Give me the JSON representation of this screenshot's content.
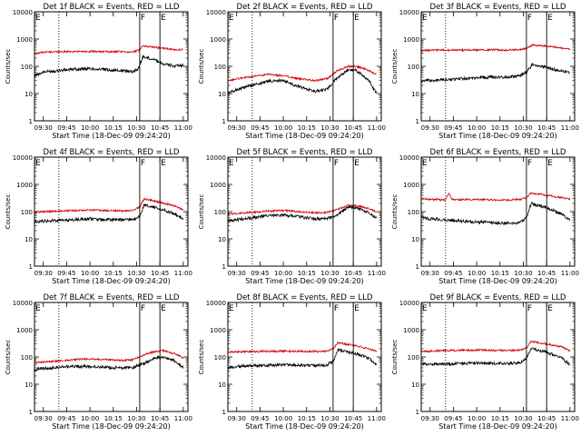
{
  "chart_data": [
    {
      "type": "line",
      "title": "Det 1f BLACK = Events, RED = LLD",
      "xlabel": "Start Time (18-Dec-09 09:24:20)",
      "ylabel": "Counts/sec",
      "xticks": [
        "09:30",
        "09:45",
        "10:00",
        "10:15",
        "10:30",
        "10:45",
        "11:00"
      ],
      "yticks": [
        "1",
        "10",
        "100",
        "1000",
        "10000"
      ],
      "ylim": [
        1,
        10000
      ],
      "yscale": "log",
      "vlines_dotted": [
        "09:40"
      ],
      "vlines_solid": [
        "10:32",
        "10:45"
      ],
      "annotations": [
        "E",
        "F",
        "E"
      ],
      "series": [
        {
          "color": "#000000",
          "x": [
            "09:24",
            "09:30",
            "09:40",
            "09:50",
            "10:00",
            "10:10",
            "10:20",
            "10:28",
            "10:31",
            "10:34",
            "10:40",
            "10:48",
            "10:55",
            "11:00"
          ],
          "values": [
            45,
            62,
            70,
            78,
            82,
            76,
            68,
            65,
            80,
            220,
            190,
            120,
            100,
            110
          ]
        },
        {
          "color": "#d40000",
          "x": [
            "09:24",
            "09:30",
            "09:40",
            "09:50",
            "10:00",
            "10:10",
            "10:20",
            "10:28",
            "10:31",
            "10:34",
            "10:40",
            "10:48",
            "10:55",
            "11:00"
          ],
          "values": [
            290,
            330,
            345,
            350,
            350,
            345,
            340,
            340,
            380,
            560,
            520,
            450,
            400,
            410
          ]
        }
      ]
    },
    {
      "type": "line",
      "title": "Det 2f BLACK = Events, RED = LLD",
      "xlabel": "Start Time (18-Dec-09 09:24:20)",
      "ylabel": "Counts/sec",
      "xticks": [
        "09:30",
        "09:45",
        "10:00",
        "10:15",
        "10:30",
        "10:45",
        "11:00"
      ],
      "yticks": [
        "1",
        "10",
        "100",
        "1000",
        "10000"
      ],
      "ylim": [
        1,
        10000
      ],
      "yscale": "log",
      "vlines_dotted": [
        "09:40"
      ],
      "vlines_solid": [
        "10:32",
        "10:45"
      ],
      "annotations": [
        "E",
        "F",
        "E"
      ],
      "series": [
        {
          "color": "#000000",
          "x": [
            "09:24",
            "09:30",
            "09:40",
            "09:50",
            "10:00",
            "10:10",
            "10:20",
            "10:28",
            "10:35",
            "10:42",
            "10:47",
            "10:55",
            "11:00"
          ],
          "values": [
            10,
            14,
            20,
            28,
            30,
            18,
            12,
            14,
            40,
            75,
            70,
            30,
            10
          ]
        },
        {
          "color": "#d40000",
          "x": [
            "09:24",
            "09:30",
            "09:40",
            "09:50",
            "10:00",
            "10:10",
            "10:20",
            "10:28",
            "10:35",
            "10:42",
            "10:47",
            "10:55",
            "11:00"
          ],
          "values": [
            28,
            35,
            42,
            50,
            45,
            35,
            30,
            35,
            70,
            100,
            100,
            70,
            50
          ]
        }
      ]
    },
    {
      "type": "line",
      "title": "Det 3f BLACK = Events, RED = LLD",
      "xlabel": "Start Time (18-Dec-09 09:24:20)",
      "ylabel": "Counts/sec",
      "xticks": [
        "09:30",
        "09:45",
        "10:00",
        "10:15",
        "10:30",
        "10:45",
        "11:00"
      ],
      "yticks": [
        "1",
        "10",
        "100",
        "1000",
        "10000"
      ],
      "ylim": [
        1,
        10000
      ],
      "yscale": "log",
      "vlines_dotted": [
        "09:40"
      ],
      "vlines_solid": [
        "10:32",
        "10:45"
      ],
      "annotations": [
        "E",
        "F",
        "E"
      ],
      "series": [
        {
          "color": "#000000",
          "x": [
            "09:24",
            "09:30",
            "09:40",
            "09:50",
            "10:00",
            "10:10",
            "10:20",
            "10:28",
            "10:32",
            "10:36",
            "10:45",
            "10:55",
            "11:00"
          ],
          "values": [
            28,
            30,
            32,
            35,
            38,
            40,
            40,
            45,
            60,
            120,
            90,
            65,
            60
          ]
        },
        {
          "color": "#d40000",
          "x": [
            "09:24",
            "09:30",
            "09:40",
            "09:50",
            "10:00",
            "10:10",
            "10:20",
            "10:28",
            "10:32",
            "10:36",
            "10:45",
            "10:55",
            "11:00"
          ],
          "values": [
            380,
            390,
            390,
            395,
            400,
            400,
            400,
            410,
            450,
            600,
            560,
            460,
            430
          ]
        }
      ]
    },
    {
      "type": "line",
      "title": "Det 4f BLACK = Events, RED = LLD",
      "xlabel": "Start Time (18-Dec-09 09:24:20)",
      "ylabel": "Counts/sec",
      "xticks": [
        "09:30",
        "09:45",
        "10:00",
        "10:15",
        "10:30",
        "10:45",
        "11:00"
      ],
      "yticks": [
        "1",
        "10",
        "100",
        "1000",
        "10000"
      ],
      "ylim": [
        1,
        10000
      ],
      "yscale": "log",
      "vlines_dotted": [
        "09:40"
      ],
      "vlines_solid": [
        "10:32",
        "10:45"
      ],
      "annotations": [
        "E",
        "F",
        "E"
      ],
      "series": [
        {
          "color": "#000000",
          "x": [
            "09:24",
            "09:30",
            "09:40",
            "09:50",
            "10:00",
            "10:10",
            "10:20",
            "10:28",
            "10:32",
            "10:35",
            "10:45",
            "10:55",
            "11:00"
          ],
          "values": [
            42,
            45,
            48,
            50,
            55,
            50,
            50,
            52,
            70,
            180,
            130,
            80,
            55
          ]
        },
        {
          "color": "#d40000",
          "x": [
            "09:24",
            "09:30",
            "09:40",
            "09:50",
            "10:00",
            "10:10",
            "10:20",
            "10:28",
            "10:32",
            "10:35",
            "10:45",
            "10:55",
            "11:00"
          ],
          "values": [
            95,
            100,
            105,
            110,
            115,
            110,
            105,
            110,
            150,
            300,
            220,
            160,
            120
          ]
        }
      ]
    },
    {
      "type": "line",
      "title": "Det 5f BLACK = Events, RED = LLD",
      "xlabel": "Start Time (18-Dec-09 09:24:20)",
      "ylabel": "Counts/sec",
      "xticks": [
        "09:30",
        "09:45",
        "10:00",
        "10:15",
        "10:30",
        "10:45",
        "11:00"
      ],
      "yticks": [
        "1",
        "10",
        "100",
        "1000",
        "10000"
      ],
      "ylim": [
        1,
        10000
      ],
      "yscale": "log",
      "vlines_dotted": [
        "09:40"
      ],
      "vlines_solid": [
        "10:32",
        "10:45"
      ],
      "annotations": [
        "E",
        "F",
        "E"
      ],
      "series": [
        {
          "color": "#000000",
          "x": [
            "09:24",
            "09:30",
            "09:40",
            "09:50",
            "10:00",
            "10:10",
            "10:20",
            "10:28",
            "10:35",
            "10:42",
            "10:47",
            "10:55",
            "11:00"
          ],
          "values": [
            45,
            50,
            60,
            70,
            75,
            65,
            55,
            55,
            80,
            150,
            140,
            90,
            60
          ]
        },
        {
          "color": "#d40000",
          "x": [
            "09:24",
            "09:30",
            "09:40",
            "09:50",
            "10:00",
            "10:10",
            "10:20",
            "10:28",
            "10:35",
            "10:42",
            "10:47",
            "10:55",
            "11:00"
          ],
          "values": [
            80,
            85,
            95,
            105,
            110,
            100,
            90,
            95,
            120,
            170,
            170,
            130,
            100
          ]
        }
      ]
    },
    {
      "type": "line",
      "title": "Det 6f BLACK = Events, RED = LLD",
      "xlabel": "Start Time (18-Dec-09 09:24:20)",
      "ylabel": "Counts/sec",
      "xticks": [
        "09:30",
        "09:45",
        "10:00",
        "10:15",
        "10:30",
        "10:45",
        "11:00"
      ],
      "yticks": [
        "1",
        "10",
        "100",
        "1000",
        "10000"
      ],
      "ylim": [
        1,
        10000
      ],
      "yscale": "log",
      "vlines_dotted": [
        "09:40"
      ],
      "vlines_solid": [
        "10:32",
        "10:45"
      ],
      "annotations": [
        "E",
        "F",
        "E"
      ],
      "series": [
        {
          "color": "#000000",
          "x": [
            "09:24",
            "09:30",
            "09:40",
            "09:50",
            "10:00",
            "10:10",
            "10:20",
            "10:28",
            "10:32",
            "10:35",
            "10:45",
            "10:55",
            "11:00"
          ],
          "values": [
            60,
            55,
            50,
            45,
            42,
            40,
            38,
            40,
            60,
            200,
            140,
            80,
            50
          ]
        },
        {
          "color": "#d40000",
          "x": [
            "09:24",
            "09:30",
            "09:40",
            "09:42",
            "09:44",
            "09:50",
            "10:00",
            "10:10",
            "10:20",
            "10:28",
            "10:32",
            "10:35",
            "10:45",
            "10:55",
            "11:00"
          ],
          "values": [
            300,
            280,
            270,
            480,
            280,
            280,
            280,
            270,
            270,
            280,
            330,
            480,
            400,
            320,
            280
          ]
        }
      ]
    },
    {
      "type": "line",
      "title": "Det 7f BLACK = Events, RED = LLD",
      "xlabel": "Start Time (18-Dec-09 09:24:20)",
      "ylabel": "Counts/sec",
      "xticks": [
        "09:30",
        "09:45",
        "10:00",
        "10:15",
        "10:30",
        "10:45",
        "11:00"
      ],
      "yticks": [
        "1",
        "10",
        "100",
        "1000",
        "10000"
      ],
      "ylim": [
        1,
        10000
      ],
      "yscale": "log",
      "vlines_dotted": [
        "09:40"
      ],
      "vlines_solid": [
        "10:32",
        "10:45"
      ],
      "annotations": [
        "E",
        "F",
        "E"
      ],
      "series": [
        {
          "color": "#000000",
          "x": [
            "09:24",
            "09:30",
            "09:40",
            "09:50",
            "10:00",
            "10:10",
            "10:20",
            "10:28",
            "10:35",
            "10:42",
            "10:47",
            "10:55",
            "11:00"
          ],
          "values": [
            35,
            38,
            42,
            45,
            45,
            42,
            40,
            42,
            60,
            90,
            100,
            70,
            40
          ]
        },
        {
          "color": "#d40000",
          "x": [
            "09:24",
            "09:30",
            "09:40",
            "09:50",
            "10:00",
            "10:10",
            "10:20",
            "10:28",
            "10:35",
            "10:42",
            "10:47",
            "10:55",
            "11:00"
          ],
          "values": [
            60,
            65,
            72,
            80,
            85,
            80,
            75,
            80,
            120,
            160,
            170,
            130,
            90
          ]
        }
      ]
    },
    {
      "type": "line",
      "title": "Det 8f BLACK = Events, RED = LLD",
      "xlabel": "Start Time (18-Dec-09 09:24:20)",
      "ylabel": "Counts/sec",
      "xticks": [
        "09:30",
        "09:45",
        "10:00",
        "10:15",
        "10:30",
        "10:45",
        "11:00"
      ],
      "yticks": [
        "1",
        "10",
        "100",
        "1000",
        "10000"
      ],
      "ylim": [
        1,
        10000
      ],
      "yscale": "log",
      "vlines_dotted": [
        "09:40"
      ],
      "vlines_solid": [
        "10:32",
        "10:45"
      ],
      "annotations": [
        "E",
        "F",
        "E"
      ],
      "series": [
        {
          "color": "#000000",
          "x": [
            "09:24",
            "09:30",
            "09:40",
            "09:50",
            "10:00",
            "10:10",
            "10:20",
            "10:28",
            "10:32",
            "10:35",
            "10:45",
            "10:55",
            "11:00"
          ],
          "values": [
            40,
            45,
            48,
            50,
            52,
            50,
            48,
            50,
            70,
            180,
            140,
            90,
            50
          ]
        },
        {
          "color": "#d40000",
          "x": [
            "09:24",
            "09:30",
            "09:40",
            "09:50",
            "10:00",
            "10:10",
            "10:20",
            "10:28",
            "10:32",
            "10:35",
            "10:45",
            "10:55",
            "11:00"
          ],
          "values": [
            150,
            155,
            160,
            160,
            165,
            160,
            160,
            160,
            200,
            330,
            270,
            200,
            160
          ]
        }
      ]
    },
    {
      "type": "line",
      "title": "Det 9f BLACK = Events, RED = LLD",
      "xlabel": "Start Time (18-Dec-09 09:24:20)",
      "ylabel": "Counts/sec",
      "xticks": [
        "09:30",
        "09:45",
        "10:00",
        "10:15",
        "10:30",
        "10:45",
        "11:00"
      ],
      "yticks": [
        "1",
        "10",
        "100",
        "1000",
        "10000"
      ],
      "ylim": [
        1,
        10000
      ],
      "yscale": "log",
      "vlines_dotted": [
        "09:40"
      ],
      "vlines_solid": [
        "10:32",
        "10:45"
      ],
      "annotations": [
        "E",
        "F",
        "E"
      ],
      "series": [
        {
          "color": "#000000",
          "x": [
            "09:24",
            "09:30",
            "09:40",
            "09:50",
            "10:00",
            "10:10",
            "10:20",
            "10:28",
            "10:32",
            "10:35",
            "10:45",
            "10:55",
            "11:00"
          ],
          "values": [
            55,
            55,
            55,
            58,
            60,
            58,
            58,
            60,
            90,
            200,
            150,
            90,
            50
          ]
        },
        {
          "color": "#d40000",
          "x": [
            "09:24",
            "09:30",
            "09:40",
            "09:50",
            "10:00",
            "10:10",
            "10:20",
            "10:28",
            "10:32",
            "10:35",
            "10:45",
            "10:55",
            "11:00"
          ],
          "values": [
            160,
            165,
            170,
            175,
            180,
            175,
            175,
            180,
            220,
            380,
            300,
            230,
            170
          ]
        }
      ]
    }
  ]
}
